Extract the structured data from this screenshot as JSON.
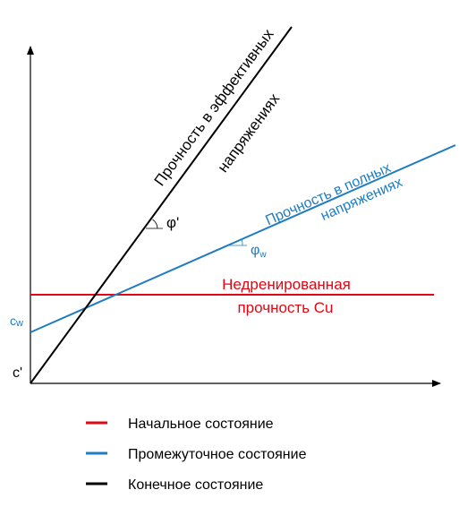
{
  "diagram": {
    "lines": {
      "effective": {
        "label_line1": "Прочность в эффективных",
        "label_line2": "напряжениях",
        "angle_label": "φ'",
        "intercept_label": "c'",
        "color": "#000000"
      },
      "total": {
        "label_line1": "Прочность в полных",
        "label_line2": "напряжениях",
        "angle_label": "φ",
        "angle_subscript": "w",
        "intercept_label": "c",
        "intercept_subscript": "w",
        "color": "#1f7cc1"
      },
      "undrained": {
        "label_line1": "Недренированная",
        "label_line2": "прочность Cu",
        "color": "#e30613"
      }
    }
  },
  "legend": [
    {
      "label": "Начальное состояние",
      "color": "#e30613"
    },
    {
      "label": "Промежуточное состояние",
      "color": "#1f7cc1"
    },
    {
      "label": "Конечное состояние",
      "color": "#000000"
    }
  ]
}
